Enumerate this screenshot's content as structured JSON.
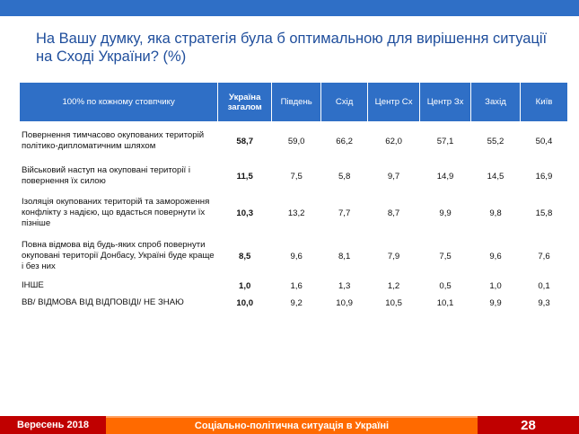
{
  "title": "На Вашу думку, яка стратегія була б оптимальною для вирішення ситуації на Сході України? (%)",
  "table": {
    "headers": [
      "100% по кожному стовпчику",
      "Україна загалом",
      "Південь",
      "Схід",
      "Центр Сх",
      "Центр Зх",
      "Захід",
      "Київ"
    ],
    "rows": [
      {
        "label": "Повернення тимчасово окупованих територій політико-дипломатичним шляхом",
        "values": [
          "58,7",
          "59,0",
          "66,2",
          "62,0",
          "57,1",
          "55,2",
          "50,4"
        ]
      },
      {
        "label": "Військовий наступ на окуповані території і повернення їх силою",
        "values": [
          "11,5",
          "7,5",
          "5,8",
          "9,7",
          "14,9",
          "14,5",
          "16,9"
        ]
      },
      {
        "label": "Ізоляція окупованих територій та замороження конфлікту з надією, що вдасться повернути їх пізніше",
        "values": [
          "10,3",
          "13,2",
          "7,7",
          "8,7",
          "9,9",
          "9,8",
          "15,8"
        ]
      },
      {
        "label": "Повна відмова від будь-яких спроб повернути окуповані території Донбасу, Україні буде краще і без них",
        "values": [
          "8,5",
          "9,6",
          "8,1",
          "7,9",
          "7,5",
          "9,6",
          "7,6"
        ]
      },
      {
        "label": "ІНШЕ",
        "values": [
          "1,0",
          "1,6",
          "1,3",
          "1,2",
          "0,5",
          "1,0",
          "0,1"
        ]
      },
      {
        "label": "ВВ/ ВІДМОВА ВІД ВІДПОВІДІ/ НЕ ЗНАЮ",
        "values": [
          "10,0",
          "9,2",
          "10,9",
          "10,5",
          "10,1",
          "9,9",
          "9,3"
        ]
      }
    ]
  },
  "footer": {
    "date": "Вересень 2018",
    "subtitle": "Соціально-політична ситуація в Україні",
    "page": "28"
  }
}
